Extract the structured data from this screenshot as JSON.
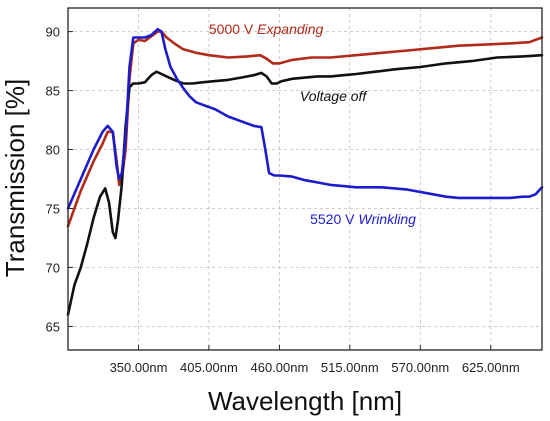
{
  "chart_data": {
    "type": "line",
    "xlabel": "Wavelength [nm]",
    "ylabel": "Transmission [%]",
    "xlim": [
      295,
      665
    ],
    "ylim": [
      63,
      92
    ],
    "x_ticks": [
      350,
      405,
      460,
      515,
      570,
      625
    ],
    "x_tick_labels": [
      "350.00nm",
      "405.00nm",
      "460.00nm",
      "515.00nm",
      "570.00nm",
      "625.00nm"
    ],
    "y_ticks": [
      65,
      70,
      75,
      80,
      85,
      90
    ],
    "y_tick_labels": [
      "65",
      "70",
      "75",
      "80",
      "85",
      "90"
    ],
    "grid": true,
    "series": [
      {
        "name": "5000 V Expanding",
        "color": "#b22a1a",
        "points": [
          [
            295,
            73.5
          ],
          [
            305,
            76.5
          ],
          [
            315,
            79
          ],
          [
            322,
            80.5
          ],
          [
            326,
            81.5
          ],
          [
            330,
            81.5
          ],
          [
            333,
            79
          ],
          [
            335,
            77
          ],
          [
            337,
            77.5
          ],
          [
            340,
            80
          ],
          [
            343,
            86
          ],
          [
            346,
            89
          ],
          [
            350,
            89.3
          ],
          [
            355,
            89.2
          ],
          [
            360,
            89.6
          ],
          [
            365,
            90
          ],
          [
            368,
            90
          ],
          [
            372,
            89.5
          ],
          [
            378,
            89
          ],
          [
            385,
            88.5
          ],
          [
            395,
            88.2
          ],
          [
            405,
            88
          ],
          [
            420,
            87.8
          ],
          [
            435,
            87.9
          ],
          [
            445,
            88
          ],
          [
            450,
            87.7
          ],
          [
            455,
            87.3
          ],
          [
            460,
            87.3
          ],
          [
            470,
            87.6
          ],
          [
            485,
            87.8
          ],
          [
            500,
            87.8
          ],
          [
            520,
            88
          ],
          [
            540,
            88.2
          ],
          [
            560,
            88.4
          ],
          [
            580,
            88.6
          ],
          [
            600,
            88.8
          ],
          [
            620,
            88.9
          ],
          [
            640,
            89
          ],
          [
            655,
            89.1
          ],
          [
            665,
            89.5
          ]
        ]
      },
      {
        "name": "Voltage off",
        "color": "#111111",
        "points": [
          [
            295,
            66
          ],
          [
            300,
            68.5
          ],
          [
            305,
            70
          ],
          [
            310,
            72
          ],
          [
            315,
            74.2
          ],
          [
            320,
            76
          ],
          [
            324,
            76.7
          ],
          [
            327,
            75.5
          ],
          [
            330,
            73
          ],
          [
            332,
            72.5
          ],
          [
            334,
            74
          ],
          [
            337,
            77
          ],
          [
            340,
            82
          ],
          [
            343,
            85.3
          ],
          [
            346,
            85.6
          ],
          [
            350,
            85.6
          ],
          [
            355,
            85.7
          ],
          [
            360,
            86.3
          ],
          [
            364,
            86.6
          ],
          [
            368,
            86.4
          ],
          [
            372,
            86.2
          ],
          [
            378,
            85.9
          ],
          [
            385,
            85.6
          ],
          [
            392,
            85.6
          ],
          [
            400,
            85.7
          ],
          [
            410,
            85.8
          ],
          [
            420,
            85.9
          ],
          [
            430,
            86.1
          ],
          [
            440,
            86.3
          ],
          [
            446,
            86.5
          ],
          [
            450,
            86.2
          ],
          [
            454,
            85.6
          ],
          [
            458,
            85.6
          ],
          [
            462,
            85.8
          ],
          [
            470,
            86
          ],
          [
            480,
            86.1
          ],
          [
            490,
            86.2
          ],
          [
            500,
            86.2
          ],
          [
            510,
            86.3
          ],
          [
            520,
            86.4
          ],
          [
            535,
            86.6
          ],
          [
            550,
            86.8
          ],
          [
            570,
            87
          ],
          [
            590,
            87.3
          ],
          [
            610,
            87.5
          ],
          [
            630,
            87.8
          ],
          [
            650,
            87.9
          ],
          [
            665,
            88
          ]
        ]
      },
      {
        "name": "5520 V Wrinkling",
        "color": "#1c1ccc",
        "points": [
          [
            295,
            75
          ],
          [
            305,
            77.5
          ],
          [
            315,
            80
          ],
          [
            322,
            81.5
          ],
          [
            326,
            82
          ],
          [
            330,
            81.5
          ],
          [
            333,
            78.5
          ],
          [
            335,
            77.5
          ],
          [
            337,
            78
          ],
          [
            340,
            81
          ],
          [
            343,
            87
          ],
          [
            346,
            89.5
          ],
          [
            350,
            89.5
          ],
          [
            355,
            89.5
          ],
          [
            360,
            89.7
          ],
          [
            365,
            90.2
          ],
          [
            368,
            90
          ],
          [
            371,
            88.5
          ],
          [
            375,
            87
          ],
          [
            380,
            86
          ],
          [
            385,
            85.2
          ],
          [
            390,
            84.5
          ],
          [
            395,
            84
          ],
          [
            400,
            83.8
          ],
          [
            410,
            83.4
          ],
          [
            420,
            82.8
          ],
          [
            430,
            82.4
          ],
          [
            440,
            82
          ],
          [
            446,
            81.9
          ],
          [
            449,
            80
          ],
          [
            452,
            78
          ],
          [
            456,
            77.8
          ],
          [
            460,
            77.8
          ],
          [
            470,
            77.7
          ],
          [
            480,
            77.4
          ],
          [
            490,
            77.2
          ],
          [
            500,
            77
          ],
          [
            510,
            76.9
          ],
          [
            520,
            76.8
          ],
          [
            540,
            76.8
          ],
          [
            560,
            76.6
          ],
          [
            580,
            76.2
          ],
          [
            590,
            76
          ],
          [
            600,
            75.9
          ],
          [
            610,
            75.9
          ],
          [
            625,
            75.9
          ],
          [
            640,
            75.9
          ],
          [
            650,
            76
          ],
          [
            655,
            76
          ],
          [
            660,
            76.2
          ],
          [
            665,
            76.8
          ]
        ]
      }
    ],
    "annotations": [
      {
        "text_plain": "5000 V ",
        "text_italic": "Expanding",
        "color": "#b22a1a",
        "x": 405,
        "y": 89.8
      },
      {
        "text_plain": "",
        "text_italic": "Voltage off",
        "color": "#111111",
        "x": 476,
        "y": 84.1
      },
      {
        "text_plain": "5520 V ",
        "text_italic": "Wrinkling",
        "color": "#1c1ccc",
        "x": 484,
        "y": 73.7
      }
    ]
  }
}
